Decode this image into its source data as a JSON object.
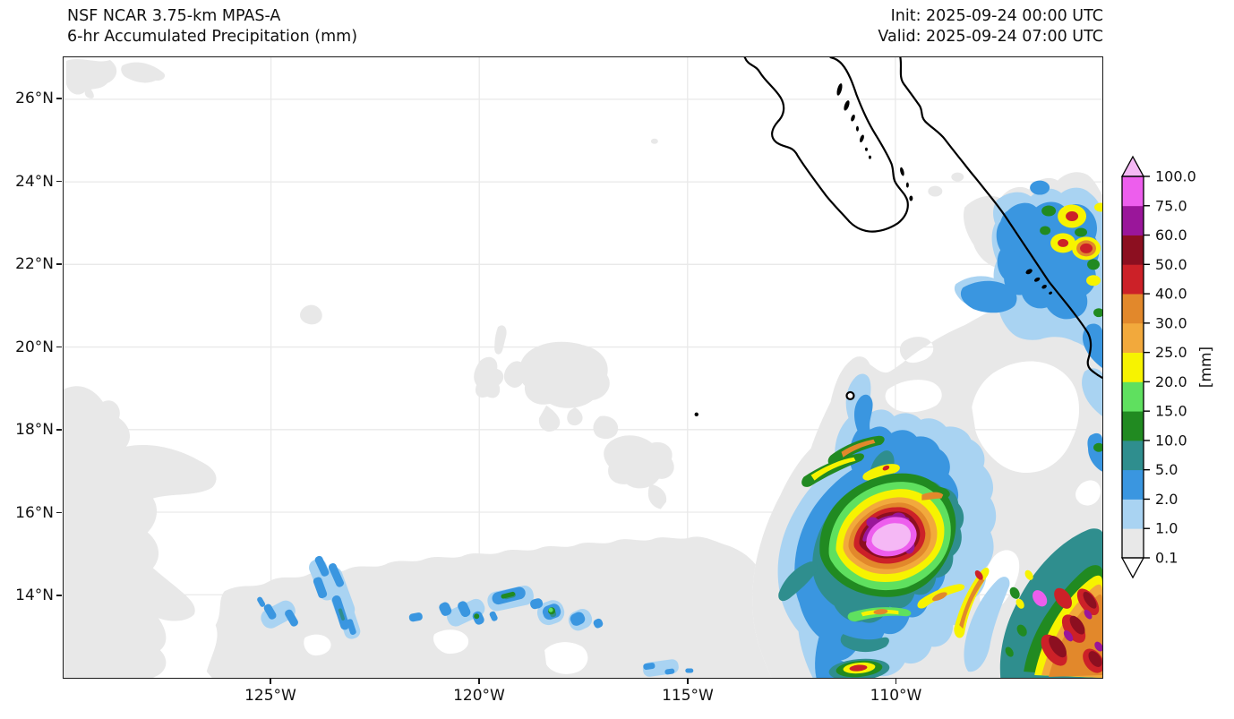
{
  "header": {
    "title_line1": "NSF NCAR 3.75-km MPAS-A",
    "title_line2": "6-hr Accumulated Precipitation (mm)",
    "init_label": "Init: 2025-09-24 00:00 UTC",
    "valid_label": "Valid: 2025-09-24 07:00 UTC"
  },
  "axes": {
    "lat_tick_labels": [
      "26°N",
      "24°N",
      "22°N",
      "20°N",
      "18°N",
      "16°N",
      "14°N"
    ],
    "lon_tick_labels": [
      "125°W",
      "120°W",
      "115°W",
      "110°W"
    ]
  },
  "colorbar": {
    "unit_label": "[mm]",
    "tick_labels": [
      "0.1",
      "1.0",
      "2.0",
      "5.0",
      "10.0",
      "15.0",
      "20.0",
      "25.0",
      "30.0",
      "40.0",
      "50.0",
      "60.0",
      "75.0",
      "100.0"
    ],
    "levels": [
      0.1,
      1.0,
      2.0,
      5.0,
      10.0,
      15.0,
      20.0,
      25.0,
      30.0,
      40.0,
      50.0,
      60.0,
      75.0,
      100.0
    ],
    "colors": [
      "#e8e8e8",
      "#a9d3f2",
      "#3a96e0",
      "#2f8e8e",
      "#218a21",
      "#5fe05f",
      "#f7f300",
      "#f2a93c",
      "#e2882b",
      "#cc2128",
      "#8c0f20",
      "#9a169a",
      "#ed5eed"
    ],
    "over_color": "#f5b8f5",
    "under_color": "#ffffff"
  },
  "chart_data": {
    "type": "heatmap",
    "title": "NSF NCAR 3.75-km MPAS-A",
    "subtitle": "6-hr Accumulated Precipitation (mm)",
    "init_time": "2025-09-24 00:00 UTC",
    "valid_time": "2025-09-24 07:00 UTC",
    "unit": "mm",
    "x_ticks": [
      "125°W",
      "120°W",
      "115°W",
      "110°W"
    ],
    "y_ticks": [
      "26°N",
      "24°N",
      "22°N",
      "20°N",
      "18°N",
      "16°N",
      "14°N"
    ],
    "lon_extent_approx_degW": [
      130,
      105
    ],
    "lat_extent_approx_degN": [
      12,
      27
    ],
    "grid": true,
    "legend_position": "right-colorbar",
    "contour_levels_mm": [
      0.1,
      1.0,
      2.0,
      5.0,
      10.0,
      15.0,
      20.0,
      25.0,
      30.0,
      40.0,
      50.0,
      60.0,
      75.0,
      100.0
    ],
    "features": [
      {
        "name": "tropical-cyclone-core",
        "approx_lon": "110.3°W",
        "approx_lat": "15.2°N",
        "max_bin_mm": "> 100"
      },
      {
        "name": "convective-band-southeast-corner",
        "approx_lon": "106.5–105°W",
        "approx_lat": "12–14.5°N",
        "max_bin_mm": "75–100"
      },
      {
        "name": "coastal-precipitation-mainland-mexico",
        "approx_lon": "106–105°W",
        "approx_lat": "21–24°N",
        "max_bin_mm": "40–50"
      },
      {
        "name": "scattered-itcz-showers",
        "approx_lon": "125–117°W",
        "approx_lat": "13–15°N",
        "max_bin_mm": "10–15"
      },
      {
        "name": "light-stratiform-areas",
        "description": "broad 0.1–1.0 mm regions across south and west of domain"
      }
    ],
    "geography_shown": [
      "Baja California peninsula",
      "Gulf of California",
      "Mainland Mexico coastline",
      "Islas Marías",
      "Socorro Island",
      "San Benedicto Island"
    ]
  }
}
